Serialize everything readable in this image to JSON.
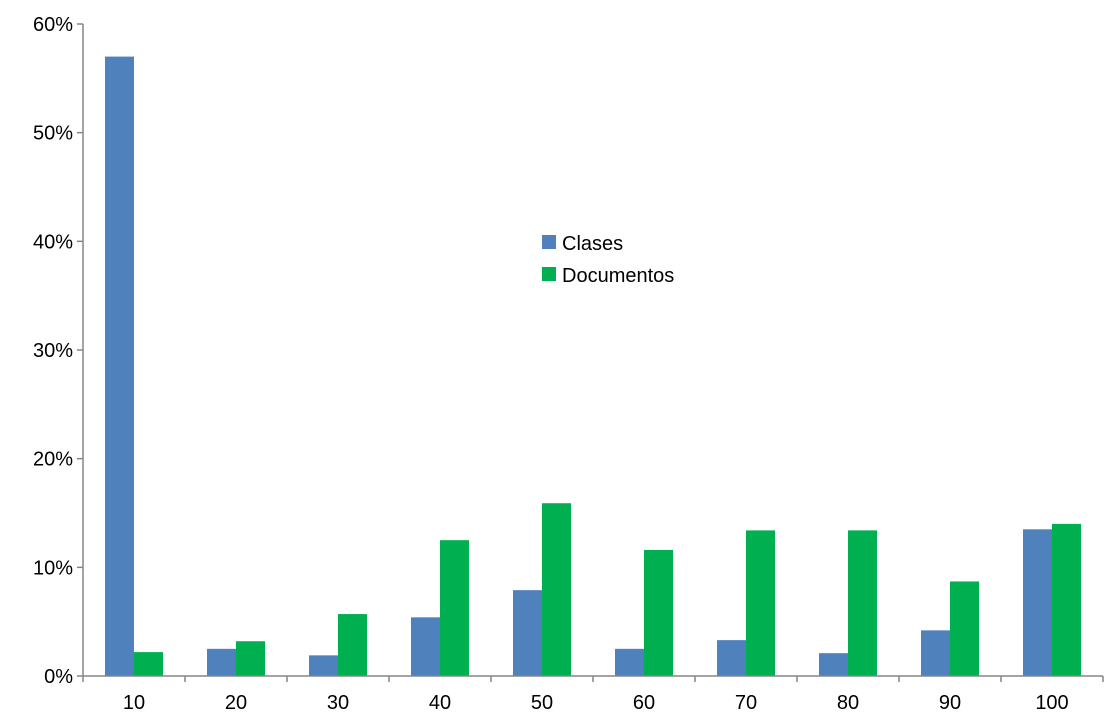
{
  "chart_data": {
    "type": "bar",
    "categories": [
      "10",
      "20",
      "30",
      "40",
      "50",
      "60",
      "70",
      "80",
      "90",
      "100"
    ],
    "series": [
      {
        "name": "Clases",
        "color": "#4F81BD",
        "values": [
          57.0,
          2.5,
          1.9,
          5.4,
          7.9,
          2.5,
          3.3,
          2.1,
          4.2,
          13.5
        ]
      },
      {
        "name": "Documentos",
        "color": "#00B050",
        "values": [
          2.2,
          3.2,
          5.7,
          12.5,
          15.9,
          11.6,
          13.4,
          13.4,
          8.7,
          14.0
        ]
      }
    ],
    "y_ticks": [
      "0%",
      "10%",
      "20%",
      "30%",
      "40%",
      "50%",
      "60%"
    ],
    "ylim": [
      0,
      60
    ],
    "title": "",
    "xlabel": "",
    "ylabel": "",
    "grid": false,
    "legend_position": "center"
  }
}
